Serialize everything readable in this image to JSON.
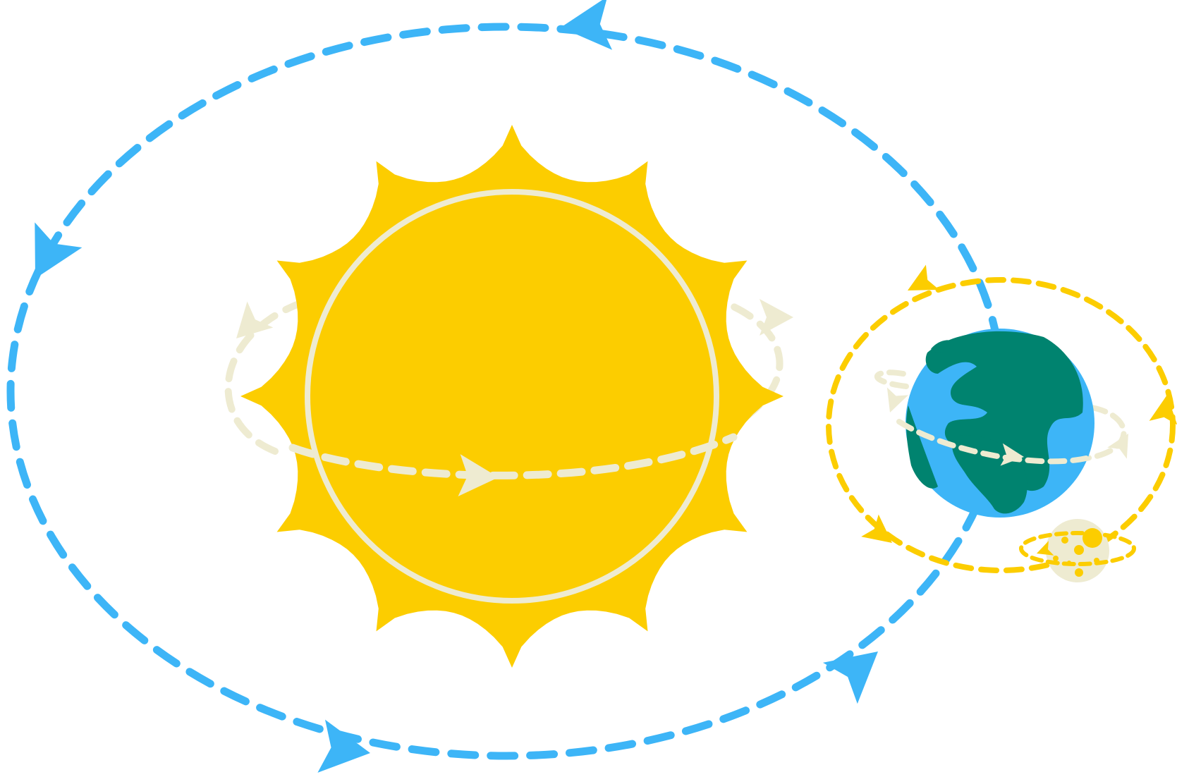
{
  "diagram": {
    "colors": {
      "background": "#ffffff",
      "earth_orbit": "#3db5f7",
      "sun_body": "#fccd00",
      "sun_ring": "#eeebd1",
      "spin_path": "#eeebd1",
      "moon_orbit": "#fccd00",
      "earth_ocean": "#3db5f7",
      "earth_land": "#00836f",
      "moon_body": "#eeebd1",
      "moon_crater": "#fccd00"
    },
    "icons": {
      "sun": "sun-icon",
      "earth": "earth-globe-icon",
      "moon": "moon-icon",
      "arrow": "arrowhead-icon"
    },
    "elements": [
      "sun",
      "sun-rotation-path",
      "earth",
      "earth-rotation-path",
      "earth-orbit-around-sun",
      "moon",
      "moon-orbit-around-earth",
      "moon-rotation-path"
    ]
  }
}
